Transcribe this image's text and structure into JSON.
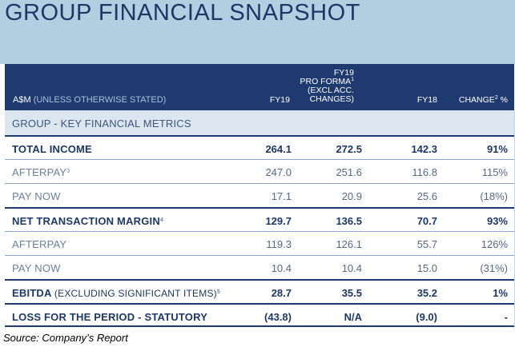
{
  "title": "GROUP FINANCIAL SNAPSHOT",
  "header": {
    "metric_main": "A$M",
    "metric_sub": "(UNLESS OTHERWISE STATED)",
    "fy19": "FY19",
    "pf_line1": "FY19",
    "pf_line2": "PRO FORMA",
    "pf_sup": "1",
    "pf_line3": "(EXCL ACC.",
    "pf_line4": "CHANGES)",
    "fy18": "FY18",
    "change": "CHANGE",
    "change_sup": "2",
    "change_unit": "%"
  },
  "section": "GROUP - KEY FINANCIAL METRICS",
  "rows": [
    {
      "label": "TOTAL INCOME",
      "sub": "",
      "sup": "",
      "fy19": "264.1",
      "pf": "272.5",
      "fy18": "142.3",
      "change": "91%"
    },
    {
      "label": "AFTERPAY",
      "sub": "",
      "sup": "3",
      "fy19": "247.0",
      "pf": "251.6",
      "fy18": "116.8",
      "change": "115%"
    },
    {
      "label": "PAY NOW",
      "sub": "",
      "sup": "",
      "fy19": "17.1",
      "pf": "20.9",
      "fy18": "25.6",
      "change": "(18%)"
    },
    {
      "label": "NET TRANSACTION MARGIN",
      "sub": "",
      "sup": "4",
      "fy19": "129.7",
      "pf": "136.5",
      "fy18": "70.7",
      "change": "93%"
    },
    {
      "label": "AFTERPAY",
      "sub": "",
      "sup": "",
      "fy19": "119.3",
      "pf": "126.1",
      "fy18": "55.7",
      "change": "126%"
    },
    {
      "label": "PAY NOW",
      "sub": "",
      "sup": "",
      "fy19": "10.4",
      "pf": "10.4",
      "fy18": "15.0",
      "change": "(31%)"
    },
    {
      "label": "EBITDA",
      "sub": "(EXCLUDING SIGNIFICANT ITEMS)",
      "sup": "5",
      "fy19": "28.7",
      "pf": "35.5",
      "fy18": "35.2",
      "change": "1%"
    },
    {
      "label": "LOSS FOR THE PERIOD - STATUTORY",
      "sub": "",
      "sup": "",
      "fy19": "(43.8)",
      "pf": "N/A",
      "fy18": "(9.0)",
      "change": "-"
    }
  ],
  "source": "Source: Company’s Report"
}
